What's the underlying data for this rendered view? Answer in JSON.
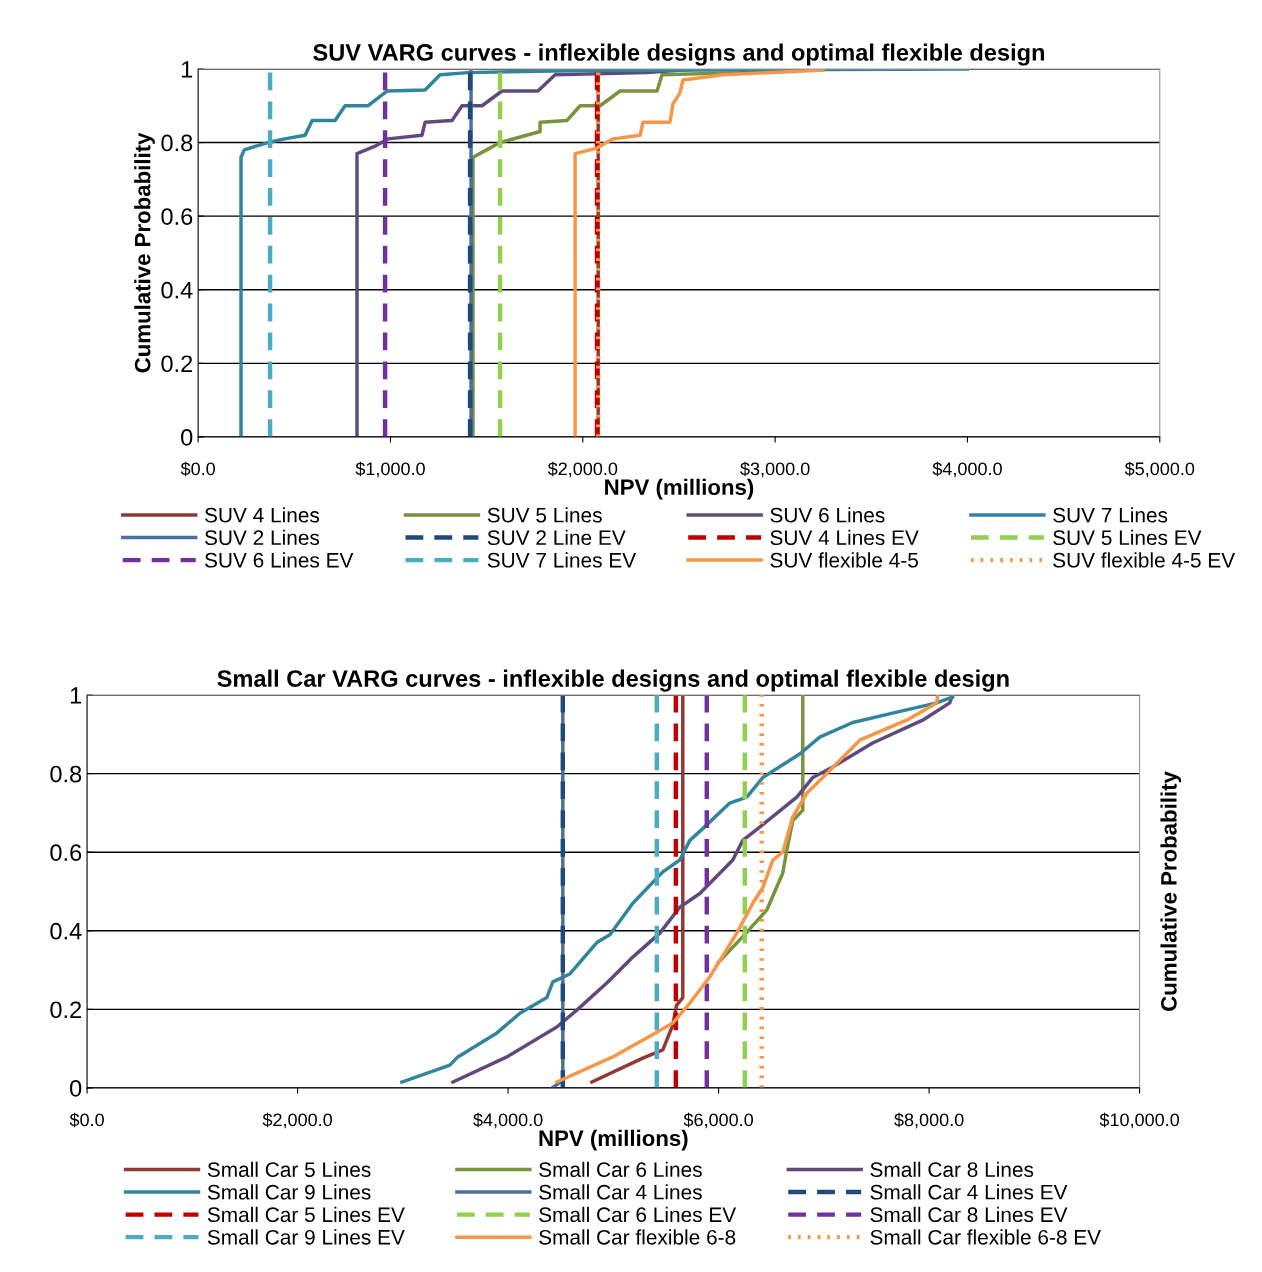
{
  "chart_data": [
    {
      "type": "line",
      "title": "SUV VARG curves - inflexible designs and optimal flexible design",
      "xlabel": "NPV (millions)",
      "ylabel": "Cumulative Probability",
      "xlim": [
        0,
        5000
      ],
      "ylim": [
        0,
        1
      ],
      "xticks": [
        {
          "value": 0,
          "label": "$0.0"
        },
        {
          "value": 1000,
          "label": "$1,000.0"
        },
        {
          "value": 2000,
          "label": "$2,000.0"
        },
        {
          "value": 3000,
          "label": "$3,000.0"
        },
        {
          "value": 4000,
          "label": "$4,000.0"
        },
        {
          "value": 5000,
          "label": "$5,000.0"
        }
      ],
      "yticks": [
        0,
        0.2,
        0.4,
        0.6,
        0.8,
        1
      ],
      "grid": "y",
      "legend": "bottom",
      "series": [
        {
          "name": "SUV 4 Lines",
          "color": "#953735",
          "line_style": "solid",
          "x": [
            2080,
            2080
          ],
          "values": [
            0,
            1
          ]
        },
        {
          "name": "SUV 5 Lines",
          "color": "#77933c",
          "line_style": "solid",
          "x": [
            1429,
            1429,
            1500,
            1570,
            1778,
            1778,
            1918,
            1986,
            2090,
            2194,
            2386,
            2412,
            2817,
            3000
          ],
          "values": [
            0,
            0.76,
            0.78,
            0.8,
            0.83,
            0.855,
            0.86,
            0.9,
            0.9,
            0.94,
            0.94,
            0.984,
            0.99,
            1
          ]
        },
        {
          "name": "SUV 6 Lines",
          "color": "#604a7b",
          "line_style": "solid",
          "x": [
            826,
            826,
            920,
            988,
            1164,
            1180,
            1320,
            1372,
            1476,
            1580,
            1767,
            1856,
            2334,
            2600
          ],
          "values": [
            0,
            0.77,
            0.79,
            0.81,
            0.82,
            0.855,
            0.86,
            0.9,
            0.9,
            0.94,
            0.94,
            0.984,
            0.99,
            1
          ]
        },
        {
          "name": "SUV 7 Lines",
          "color": "#31859c",
          "line_style": "solid",
          "x": [
            223,
            223,
            240,
            300,
            364,
            450,
            556,
            593,
            712,
            764,
            884,
            982,
            1180,
            1258,
            1403,
            2000,
            4000
          ],
          "values": [
            0,
            0.76,
            0.78,
            0.79,
            0.8,
            0.81,
            0.82,
            0.86,
            0.86,
            0.9,
            0.9,
            0.94,
            0.943,
            0.984,
            0.99,
            0.996,
            1
          ]
        },
        {
          "name": "SUV 2 Lines",
          "color": "#4a6fa0",
          "line_style": "solid",
          "x": [
            1419,
            1419
          ],
          "values": [
            0,
            1
          ]
        },
        {
          "name": "SUV 2 Line EV",
          "color": "#1f497d",
          "line_style": "dashed",
          "x": [
            1414,
            1414
          ],
          "values": [
            0,
            1
          ]
        },
        {
          "name": "SUV 4 Lines EV",
          "color": "#c00000",
          "line_style": "dashed",
          "x": [
            2074,
            2074
          ],
          "values": [
            0,
            1
          ]
        },
        {
          "name": "SUV 5 Lines EV",
          "color": "#92d050",
          "line_style": "dashed",
          "x": [
            1570,
            1570
          ],
          "values": [
            0,
            1
          ]
        },
        {
          "name": "SUV 6 Lines EV",
          "color": "#7030a0",
          "line_style": "dashed",
          "x": [
            972,
            972
          ],
          "values": [
            0,
            1
          ]
        },
        {
          "name": "SUV 7 Lines EV",
          "color": "#4bacc6",
          "line_style": "dashed",
          "x": [
            374,
            374
          ],
          "values": [
            0,
            1
          ]
        },
        {
          "name": "SUV flexible 4-5",
          "color": "#f79646",
          "line_style": "solid",
          "x": [
            1960,
            1960,
            2074,
            2157,
            2298,
            2313,
            2453,
            2469,
            2505,
            2521,
            2729,
            3249
          ],
          "values": [
            0,
            0.77,
            0.785,
            0.81,
            0.82,
            0.855,
            0.855,
            0.905,
            0.935,
            0.97,
            0.984,
            0.997
          ]
        },
        {
          "name": "SUV flexible 4-5 EV",
          "color": "#f79646",
          "line_style": "dotted",
          "x": [
            2080,
            2080
          ],
          "values": [
            0,
            1
          ]
        }
      ]
    },
    {
      "type": "line",
      "title": "Small Car VARG curves - inflexible designs and optimal flexible design",
      "xlabel": "NPV (millions)",
      "ylabel": "Cumulative Probability",
      "xlim": [
        0,
        10000
      ],
      "ylim": [
        0,
        1
      ],
      "xticks": [
        {
          "value": 0,
          "label": "$0.0"
        },
        {
          "value": 2000,
          "label": "$2,000.0"
        },
        {
          "value": 4000,
          "label": "$4,000.0"
        },
        {
          "value": 6000,
          "label": "$6,000.0"
        },
        {
          "value": 8000,
          "label": "$8,000.0"
        },
        {
          "value": 10000,
          "label": "$10,000.0"
        }
      ],
      "yticks": [
        0,
        0.2,
        0.4,
        0.6,
        0.8,
        1
      ],
      "grid": "y",
      "legend": "bottom",
      "series": [
        {
          "name": "Small Car 5 Lines",
          "color": "#953735",
          "line_style": "solid",
          "x": [
            4796,
            5280,
            5470,
            5565,
            5600,
            5660,
            5660
          ],
          "values": [
            0.015,
            0.076,
            0.097,
            0.16,
            0.21,
            0.23,
            1
          ]
        },
        {
          "name": "Small Car 6 Lines",
          "color": "#77933c",
          "line_style": "solid",
          "x": [
            6000,
            6230,
            6458,
            6610,
            6648,
            6705,
            6800,
            6800
          ],
          "values": [
            0.32,
            0.385,
            0.453,
            0.547,
            0.605,
            0.68,
            0.707,
            1
          ]
        },
        {
          "name": "Small Car 8 Lines",
          "color": "#604a7b",
          "line_style": "solid",
          "x": [
            3476,
            3989,
            4463,
            4653,
            4938,
            5185,
            5442,
            5631,
            5822,
            6135,
            6230,
            6391,
            6743,
            6895,
            7085,
            7464,
            7939,
            8196,
            8224
          ],
          "values": [
            0.015,
            0.079,
            0.155,
            0.198,
            0.267,
            0.333,
            0.394,
            0.46,
            0.495,
            0.58,
            0.63,
            0.664,
            0.74,
            0.79,
            0.817,
            0.878,
            0.936,
            0.98,
            1
          ]
        },
        {
          "name": "Small Car 9 Lines",
          "color": "#31859c",
          "line_style": "solid",
          "x": [
            2991,
            3447,
            3523,
            3894,
            4112,
            4368,
            4425,
            4587,
            4843,
            4967,
            5185,
            5470,
            5631,
            5727,
            5850,
            6106,
            6268,
            6420,
            6771,
            6961,
            7275,
            7654,
            8072,
            8224
          ],
          "values": [
            0.015,
            0.058,
            0.079,
            0.14,
            0.19,
            0.23,
            0.27,
            0.29,
            0.37,
            0.39,
            0.47,
            0.55,
            0.58,
            0.63,
            0.66,
            0.725,
            0.74,
            0.79,
            0.85,
            0.893,
            0.93,
            0.954,
            0.98,
            0.995
          ]
        },
        {
          "name": "Small Car 4 Lines",
          "color": "#4a6fa0",
          "line_style": "solid",
          "x": [
            4420,
            4520,
            4520
          ],
          "values": [
            0,
            0.02,
            1
          ]
        },
        {
          "name": "Small Car 4 Lines EV",
          "color": "#1f497d",
          "line_style": "dashed",
          "x": [
            4520,
            4520
          ],
          "values": [
            0,
            1
          ]
        },
        {
          "name": "Small Car 5 Lines EV",
          "color": "#c00000",
          "line_style": "dashed",
          "x": [
            5594,
            5594
          ],
          "values": [
            0,
            1
          ]
        },
        {
          "name": "Small Car 6 Lines EV",
          "color": "#92d050",
          "line_style": "dashed",
          "x": [
            6249,
            6249
          ],
          "values": [
            0,
            1
          ]
        },
        {
          "name": "Small Car 8 Lines EV",
          "color": "#7030a0",
          "line_style": "dashed",
          "x": [
            5888,
            5888
          ],
          "values": [
            0,
            1
          ]
        },
        {
          "name": "Small Car 9 Lines EV",
          "color": "#4bacc6",
          "line_style": "dashed",
          "x": [
            5413,
            5413
          ],
          "values": [
            0,
            1
          ]
        },
        {
          "name": "Small Car flexible 6-8",
          "color": "#f79646",
          "line_style": "solid",
          "x": [
            4463,
            4995,
            5413,
            5565,
            5727,
            5917,
            6173,
            6325,
            6420,
            6515,
            6610,
            6705,
            6838,
            6990,
            7341,
            7787,
            8072,
            8082
          ],
          "values": [
            0.015,
            0.079,
            0.142,
            0.165,
            0.216,
            0.283,
            0.394,
            0.47,
            0.51,
            0.58,
            0.6,
            0.69,
            0.75,
            0.79,
            0.885,
            0.936,
            0.98,
            1
          ]
        },
        {
          "name": "Small Car flexible 6-8 EV",
          "color": "#f79646",
          "line_style": "dotted",
          "x": [
            6410,
            6410
          ],
          "values": [
            0,
            1
          ]
        }
      ]
    }
  ]
}
